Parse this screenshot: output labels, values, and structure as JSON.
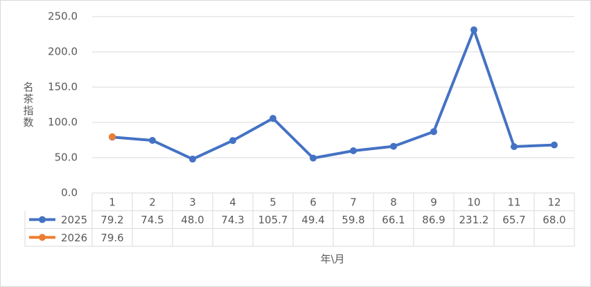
{
  "chart_data": {
    "type": "line",
    "x_label": "年\\月",
    "y_label": "名茶指数",
    "categories": [
      "1",
      "2",
      "3",
      "4",
      "5",
      "6",
      "7",
      "8",
      "9",
      "10",
      "11",
      "12"
    ],
    "series": [
      {
        "name": "2025",
        "color": "#4472c4",
        "values": [
          79.2,
          74.5,
          48.0,
          74.3,
          105.7,
          49.4,
          59.8,
          66.1,
          86.9,
          231.2,
          65.7,
          68.0
        ],
        "value_labels": [
          "79.2",
          "74.5",
          "48.0",
          "74.3",
          "105.7",
          "49.4",
          "59.8",
          "66.1",
          "86.9",
          "231.2",
          "65.7",
          "68.0"
        ]
      },
      {
        "name": "2026",
        "color": "#ed7d31",
        "values": [
          79.6,
          null,
          null,
          null,
          null,
          null,
          null,
          null,
          null,
          null,
          null,
          null
        ],
        "value_labels": [
          "79.6",
          null,
          null,
          null,
          null,
          null,
          null,
          null,
          null,
          null,
          null,
          null
        ]
      }
    ],
    "ylim": [
      0,
      250
    ],
    "yticks": [
      {
        "value": 0,
        "label": "0.0"
      },
      {
        "value": 50,
        "label": "50.0"
      },
      {
        "value": 100,
        "label": "100.0"
      },
      {
        "value": 150,
        "label": "150.0"
      },
      {
        "value": 200,
        "label": "200.0"
      },
      {
        "value": 250,
        "label": "250.0"
      }
    ],
    "grid": true,
    "data_table": true
  }
}
